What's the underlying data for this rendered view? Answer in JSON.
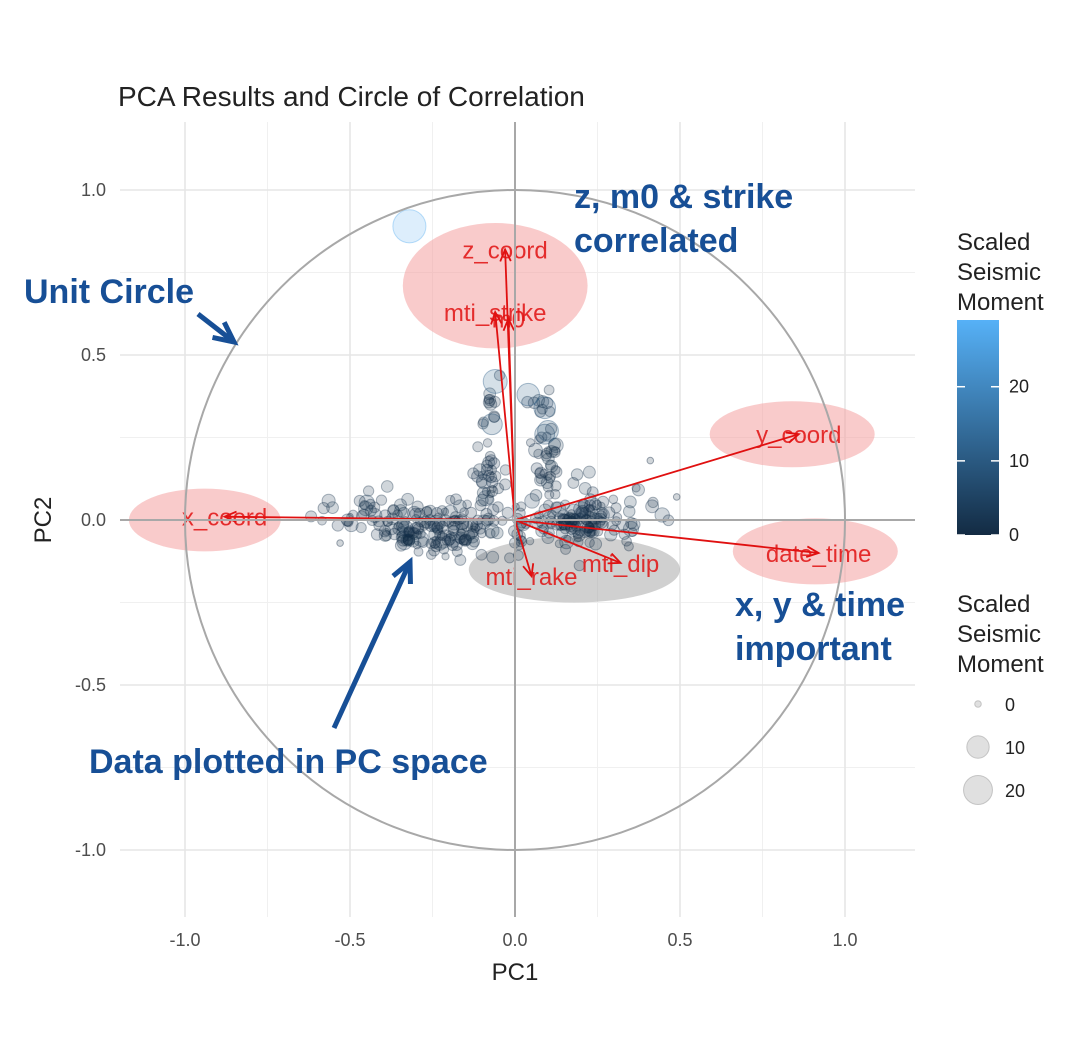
{
  "chart_data": {
    "type": "scatter",
    "title": "PCA Results and Circle of Correlation",
    "xlabel": "PC1",
    "ylabel": "PC2",
    "xlim": [
      -1.22,
      1.22
    ],
    "ylim": [
      -1.22,
      1.22
    ],
    "xticks": [
      -1.0,
      -0.5,
      0.0,
      0.5,
      1.0
    ],
    "yticks": [
      -1.0,
      -0.5,
      0.0,
      0.5,
      1.0
    ],
    "xtick_labels": [
      "-1.0",
      "-0.5",
      "0.0",
      "0.5",
      "1.0"
    ],
    "ytick_labels": [
      "-1.0",
      "-0.5",
      "0.0",
      "0.5",
      "1.0"
    ],
    "grid": true,
    "unit_circle": true,
    "loadings": [
      {
        "name": "z_coord",
        "x": -0.03,
        "y": 0.82
      },
      {
        "name": "m0",
        "x": -0.02,
        "y": 0.61
      },
      {
        "name": "mti_strike",
        "x": -0.06,
        "y": 0.63
      },
      {
        "name": "y_coord",
        "x": 0.86,
        "y": 0.26
      },
      {
        "name": "x_coord",
        "x": -0.88,
        "y": 0.01
      },
      {
        "name": "date_time",
        "x": 0.92,
        "y": -0.1
      },
      {
        "name": "mti_rake",
        "x": 0.05,
        "y": -0.17
      },
      {
        "name": "mti_dip",
        "x": 0.32,
        "y": -0.13
      }
    ],
    "highlight_ellipses": [
      {
        "cx": -0.06,
        "cy": 0.71,
        "rx": 0.28,
        "ry": 0.19,
        "color": "#f4a0a0"
      },
      {
        "cx": 0.84,
        "cy": 0.26,
        "rx": 0.25,
        "ry": 0.1,
        "color": "#f4a0a0"
      },
      {
        "cx": -0.94,
        "cy": 0.0,
        "rx": 0.23,
        "ry": 0.095,
        "color": "#f4a0a0"
      },
      {
        "cx": 0.91,
        "cy": -0.095,
        "rx": 0.25,
        "ry": 0.1,
        "color": "#f4a0a0"
      },
      {
        "cx": 0.18,
        "cy": -0.15,
        "rx": 0.32,
        "ry": 0.1,
        "color": "#aaaaaa"
      }
    ],
    "points_note_series": "Scaled Seismic Moment",
    "point_clusters": [
      {
        "cx": -0.2,
        "cy": -0.03,
        "sx": 0.12,
        "sy": 0.04,
        "n": 140
      },
      {
        "cx": 0.2,
        "cy": -0.01,
        "sx": 0.08,
        "sy": 0.03,
        "n": 120
      },
      {
        "cx": -0.33,
        "cy": -0.05,
        "sx": 0.02,
        "sy": 0.015,
        "n": 20
      },
      {
        "cx": -0.08,
        "cy": 0.13,
        "sx": 0.025,
        "sy": 0.04,
        "n": 30
      },
      {
        "cx": 0.09,
        "cy": 0.15,
        "sx": 0.03,
        "sy": 0.08,
        "n": 40
      },
      {
        "cx": -0.07,
        "cy": 0.33,
        "sx": 0.02,
        "sy": 0.05,
        "n": 12
      },
      {
        "cx": 0.09,
        "cy": 0.36,
        "sx": 0.02,
        "sy": 0.03,
        "n": 8
      },
      {
        "cx": -0.42,
        "cy": 0.02,
        "sx": 0.08,
        "sy": 0.03,
        "n": 40
      },
      {
        "cx": 0.3,
        "cy": 0.06,
        "sx": 0.08,
        "sy": 0.03,
        "n": 20
      }
    ],
    "outlier_points": [
      {
        "x": -0.32,
        "y": 0.89,
        "moment": 28
      },
      {
        "x": -0.06,
        "y": 0.42,
        "moment": 12
      },
      {
        "x": 0.04,
        "y": 0.38,
        "moment": 10
      },
      {
        "x": 0.09,
        "y": 0.34,
        "moment": 9
      },
      {
        "x": -0.07,
        "y": 0.29,
        "moment": 8
      },
      {
        "x": 0.1,
        "y": 0.27,
        "moment": 8
      },
      {
        "x": 0.09,
        "y": 0.26,
        "moment": 7
      },
      {
        "x": 0.41,
        "y": 0.18,
        "moment": 0
      },
      {
        "x": 0.49,
        "y": 0.07,
        "moment": 0
      },
      {
        "x": -0.53,
        "y": -0.07,
        "moment": 0
      },
      {
        "x": -0.5,
        "y": 0.01,
        "moment": 0
      }
    ],
    "colorbar": {
      "title": "Scaled\nSeismic\nMoment",
      "ticks": [
        0,
        10,
        20
      ],
      "min": 0,
      "max": 29,
      "low_color": "#132b43",
      "high_color": "#56b1f7"
    },
    "size_legend": {
      "title": "Scaled\nSeismic\nMoment",
      "entries": [
        "0",
        "10",
        "20"
      ]
    },
    "annotations": [
      {
        "text": "z, m0 & strike\ncorrelated"
      },
      {
        "text": "Unit Circle"
      },
      {
        "text": "x, y & time\nimportant"
      },
      {
        "text": "Data plotted in PC space"
      }
    ],
    "annotation_color": "#174f96",
    "loading_color": "#e01010"
  }
}
